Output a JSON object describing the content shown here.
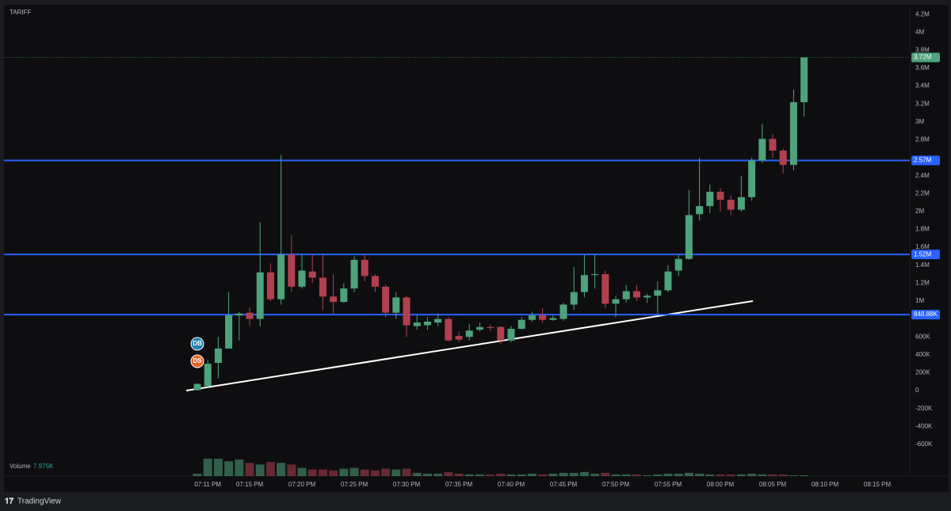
{
  "chart_data": {
    "type": "candlestick",
    "title": "TARIFF",
    "categories": [
      null,
      "07:11 PM",
      null,
      null,
      null,
      "07:15 PM",
      null,
      null,
      null,
      null,
      "07:20 PM",
      null,
      null,
      null,
      null,
      "07:25 PM",
      null,
      null,
      null,
      null,
      "07:30 PM",
      null,
      null,
      null,
      null,
      "07:35 PM",
      null,
      null,
      null,
      null,
      "07:40 PM",
      null,
      null,
      null,
      null,
      "07:45 PM",
      null,
      null,
      null,
      null,
      "07:50 PM",
      null,
      null,
      null,
      null,
      "07:55 PM",
      null,
      null,
      null,
      null,
      "08:00 PM",
      null,
      null,
      null,
      null,
      "08:05 PM",
      null,
      null,
      null,
      null,
      "08:10 PM",
      null,
      null,
      null,
      null,
      "08:15 PM"
    ],
    "open": [
      5000,
      50000,
      310000,
      470000,
      840000,
      870000,
      800000,
      1320000,
      1020000,
      1520000,
      1160000,
      1330000,
      1260000,
      1050000,
      990000,
      1140000,
      1460000,
      1280000,
      1160000,
      870000,
      1040000,
      720000,
      730000,
      760000,
      800000,
      610000,
      600000,
      680000,
      710000,
      710000,
      560000,
      690000,
      790000,
      840000,
      790000,
      800000,
      960000,
      1100000,
      1290000,
      1300000,
      970000,
      1020000,
      1110000,
      1040000,
      1060000,
      1120000,
      1340000,
      1470000,
      1970000,
      2060000,
      2220000,
      2130000,
      2020000,
      2160000,
      2570000,
      2810000,
      2680000,
      2520000,
      3220000,
      null,
      null,
      null,
      null,
      null,
      null,
      null
    ],
    "high": [
      80000,
      340000,
      600000,
      1100000,
      880000,
      930000,
      1880000,
      1420000,
      2630000,
      1740000,
      1520000,
      1520000,
      1520000,
      1300000,
      1200000,
      1500000,
      1520000,
      1300000,
      1180000,
      1100000,
      1060000,
      840000,
      820000,
      860000,
      820000,
      660000,
      740000,
      760000,
      740000,
      720000,
      720000,
      820000,
      880000,
      920000,
      840000,
      980000,
      1380000,
      1520000,
      1520000,
      1340000,
      1060000,
      1180000,
      1180000,
      1080000,
      1220000,
      1400000,
      1520000,
      2240000,
      2600000,
      2300000,
      2260000,
      2180000,
      2400000,
      2600000,
      2980000,
      2860000,
      2700000,
      3360000,
      3720000,
      null,
      null,
      null,
      null,
      null,
      null,
      null
    ],
    "low": [
      0,
      40000,
      140000,
      470000,
      560000,
      720000,
      720000,
      1000000,
      960000,
      1100000,
      1140000,
      1200000,
      900000,
      840000,
      980000,
      1100000,
      1220000,
      1100000,
      820000,
      800000,
      600000,
      680000,
      680000,
      720000,
      550000,
      540000,
      560000,
      660000,
      660000,
      520000,
      540000,
      680000,
      770000,
      760000,
      780000,
      780000,
      900000,
      1040000,
      1140000,
      920000,
      820000,
      980000,
      1000000,
      980000,
      860000,
      1100000,
      1280000,
      1460000,
      1900000,
      1980000,
      2000000,
      1960000,
      2000000,
      2120000,
      2540000,
      2600000,
      2420000,
      2460000,
      3060000,
      null,
      null,
      null,
      null,
      null,
      null,
      null
    ],
    "close": [
      75000,
      300000,
      470000,
      840000,
      860000,
      800000,
      1320000,
      1020000,
      1520000,
      1160000,
      1340000,
      1260000,
      1050000,
      990000,
      1140000,
      1460000,
      1280000,
      1160000,
      870000,
      1040000,
      730000,
      760000,
      770000,
      800000,
      560000,
      570000,
      670000,
      710000,
      700000,
      560000,
      690000,
      790000,
      840000,
      790000,
      810000,
      960000,
      1100000,
      1290000,
      1300000,
      970000,
      1020000,
      1110000,
      1040000,
      1060000,
      1120000,
      1330000,
      1470000,
      1960000,
      2060000,
      2220000,
      2130000,
      2020000,
      2160000,
      2570000,
      2810000,
      2680000,
      2520000,
      3220000,
      3720000,
      null,
      null,
      null,
      null,
      null,
      null,
      null
    ],
    "volume": {
      "name": "Volume",
      "values": [
        24000,
        168000,
        168000,
        144000,
        160000,
        128000,
        112000,
        136000,
        128000,
        112000,
        80000,
        64000,
        64000,
        56000,
        72000,
        80000,
        64000,
        56000,
        72000,
        64000,
        72000,
        32000,
        24000,
        24000,
        40000,
        24000,
        16000,
        16000,
        16000,
        24000,
        16000,
        16000,
        24000,
        16000,
        24000,
        32000,
        32000,
        40000,
        24000,
        32000,
        16000,
        16000,
        16000,
        8000,
        16000,
        24000,
        24000,
        32000,
        24000,
        16000,
        16000,
        16000,
        16000,
        24000,
        16000,
        16000,
        16000,
        8000,
        7975,
        null,
        null,
        null,
        null,
        null,
        null,
        null
      ],
      "value_labels": [
        null,
        null,
        null,
        null,
        null,
        null,
        null,
        null,
        null,
        null,
        null,
        null,
        null,
        null,
        null,
        null,
        null,
        null,
        null,
        null,
        null,
        null,
        null,
        null,
        null,
        null,
        null,
        null,
        null,
        null,
        null,
        null,
        null,
        null,
        null,
        null,
        null,
        null,
        null,
        null,
        null,
        null,
        null,
        null,
        null,
        null,
        null,
        null,
        null,
        null,
        null,
        null,
        null,
        null,
        null,
        null,
        null,
        null,
        "7.975K",
        null,
        null,
        null,
        null,
        null,
        null,
        null
      ]
    },
    "up_color": "#4ea37c",
    "down_color": "#b1404f",
    "ylim": [
      -946000,
      4290000
    ],
    "yticks": [
      {
        "value": 4200000,
        "label": "4.2M"
      },
      {
        "value": 4000000,
        "label": "4M"
      },
      {
        "value": 3800000,
        "label": "3.8M"
      },
      {
        "value": 3600000,
        "label": "3.6M"
      },
      {
        "value": 3400000,
        "label": "3.4M"
      },
      {
        "value": 3200000,
        "label": "3.2M"
      },
      {
        "value": 3000000,
        "label": "3M"
      },
      {
        "value": 2800000,
        "label": "2.8M"
      },
      {
        "value": 2400000,
        "label": "2.4M"
      },
      {
        "value": 2200000,
        "label": "2.2M"
      },
      {
        "value": 2000000,
        "label": "2M"
      },
      {
        "value": 1800000,
        "label": "1.8M"
      },
      {
        "value": 1600000,
        "label": "1.6M"
      },
      {
        "value": 1400000,
        "label": "1.4M"
      },
      {
        "value": 1200000,
        "label": "1.2M"
      },
      {
        "value": 1000000,
        "label": "1M"
      },
      {
        "value": 600000,
        "label": "600K"
      },
      {
        "value": 400000,
        "label": "400K"
      },
      {
        "value": 200000,
        "label": "200K"
      },
      0,
      {
        "value": -200000,
        "label": "-200K"
      },
      {
        "value": -400000,
        "label": "-400K"
      },
      {
        "value": -600000,
        "label": "-600K"
      }
    ],
    "levels": [
      {
        "value": 2570000,
        "label": "2.57M"
      },
      {
        "value": 1520000,
        "label": "1.52M"
      },
      {
        "value": 848880,
        "label": "848.88K"
      }
    ],
    "level_color": "#2962ff",
    "last_price": {
      "value": 3720000,
      "label": "3.72M"
    },
    "markers": [
      {
        "label": "DB",
        "color": "#1e7fb0"
      },
      {
        "label": "DS",
        "color": "#e4632a"
      }
    ],
    "grid": false
  },
  "brand": "TradingView"
}
